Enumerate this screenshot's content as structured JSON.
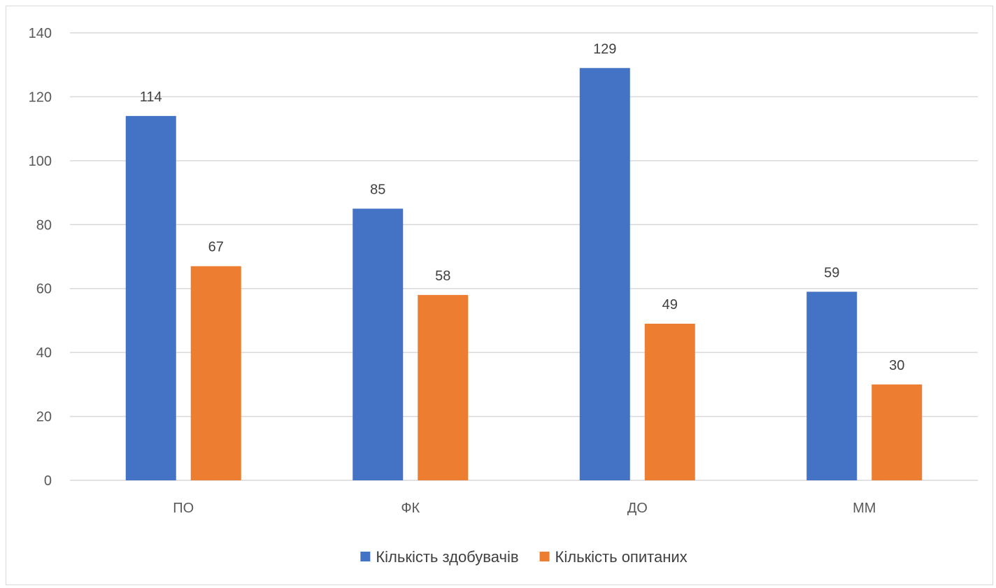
{
  "chart_data": {
    "type": "bar",
    "title": "",
    "xlabel": "",
    "ylabel": "",
    "categories": [
      "ПО",
      "ФК",
      "ДО",
      "ММ"
    ],
    "series": [
      {
        "name": "Кількість здобувачів",
        "values": [
          114,
          85,
          129,
          59
        ],
        "color": "#4472c4"
      },
      {
        "name": "Кількість опитаних",
        "values": [
          67,
          58,
          49,
          30
        ],
        "color": "#ed7d31"
      }
    ],
    "ylim": [
      0,
      140
    ],
    "yticks": [
      0,
      20,
      40,
      60,
      80,
      100,
      120,
      140
    ],
    "grid": true,
    "legend_position": "bottom",
    "data_labels": true,
    "gridline_color": "#d9d9d9"
  }
}
